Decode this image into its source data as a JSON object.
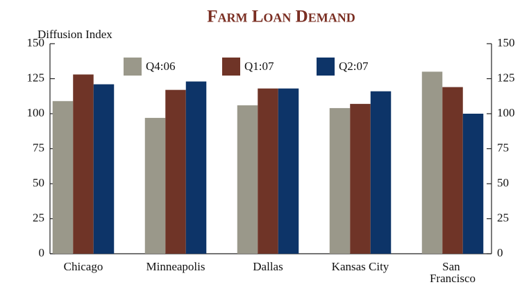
{
  "chart_data": {
    "type": "bar",
    "title": "Farm Loan Demand",
    "y_label": "Diffusion Index",
    "categories": [
      "Chicago",
      "Minneapolis",
      "Dallas",
      "Kansas City",
      "San Francisco"
    ],
    "series": [
      {
        "name": "Q4:06",
        "color": "#9a988a",
        "values": [
          109,
          97,
          106,
          104,
          130
        ]
      },
      {
        "name": "Q1:07",
        "color": "#6f3427",
        "values": [
          128,
          117,
          118,
          107,
          119
        ]
      },
      {
        "name": "Q2:07",
        "color": "#0d3468",
        "values": [
          121,
          123,
          118,
          116,
          100
        ]
      }
    ],
    "ylim": [
      0,
      150
    ],
    "yticks": [
      0,
      25,
      50,
      75,
      100,
      125,
      150
    ],
    "y2lim": [
      0,
      150
    ],
    "y2ticks": [
      0,
      25,
      50,
      75,
      100,
      125,
      150
    ],
    "grid": false
  }
}
